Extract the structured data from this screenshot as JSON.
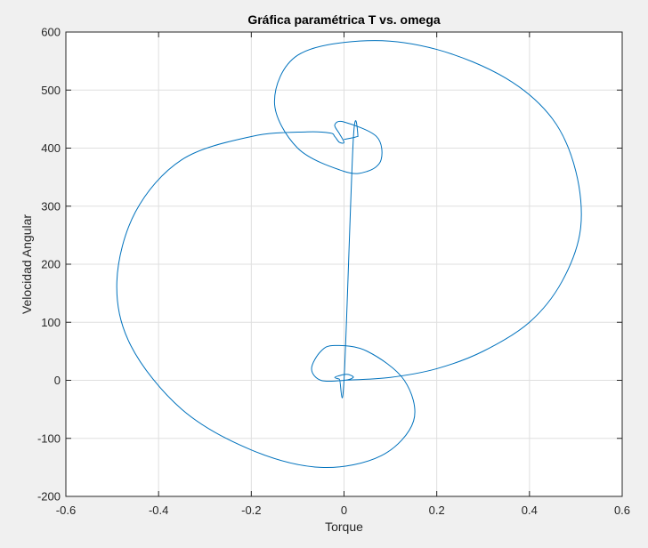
{
  "chart_data": {
    "type": "line",
    "title": "Gráfica paramétrica T vs. omega",
    "xlabel": "Torque",
    "ylabel": "Velocidad Angular",
    "xlim": [
      -0.6,
      0.6
    ],
    "ylim": [
      -200,
      600
    ],
    "xticks": [
      -0.6,
      -0.4,
      -0.2,
      0,
      0.2,
      0.4,
      0.6
    ],
    "yticks": [
      -200,
      -100,
      0,
      100,
      200,
      300,
      400,
      500,
      600
    ],
    "xtick_labels": [
      "-0.6",
      "-0.4",
      "-0.2",
      "0",
      "0.2",
      "0.4",
      "0.6"
    ],
    "ytick_labels": [
      "-200",
      "-100",
      "0",
      "100",
      "200",
      "300",
      "400",
      "500",
      "600"
    ],
    "grid": true,
    "colors": {
      "line": "#0072bd",
      "axes_bg": "#ffffff",
      "figure_bg": "#f0f0f0",
      "grid": "#dfdfdf",
      "axis": "#262626"
    },
    "series": [
      {
        "x": [
          0.0,
          0.1,
          0.2,
          0.3,
          0.4,
          0.47,
          0.51,
          0.5,
          0.45,
          0.35,
          0.2,
          0.05,
          -0.1,
          -0.15,
          -0.1,
          0.0,
          0.05,
          0.08,
          0.07,
          0.0,
          -0.02,
          -0.01,
          0.0,
          -0.01,
          -0.02,
          -0.03,
          -0.08,
          -0.2,
          -0.35,
          -0.45,
          -0.49,
          -0.46,
          -0.35,
          -0.2,
          -0.05,
          0.08,
          0.15,
          0.13,
          0.05,
          -0.02,
          -0.05,
          -0.07,
          -0.05,
          0.0,
          0.02,
          0.01,
          0.0,
          -0.01,
          -0.02,
          -0.01,
          0.0,
          0.02,
          0.03,
          0.02,
          0.0
        ],
        "y": [
          0,
          5,
          20,
          50,
          100,
          170,
          260,
          360,
          450,
          520,
          570,
          585,
          560,
          480,
          400,
          360,
          360,
          380,
          420,
          445,
          440,
          425,
          410,
          410,
          420,
          426,
          428,
          420,
          380,
          290,
          170,
          60,
          -50,
          -120,
          -150,
          -130,
          -70,
          0,
          50,
          60,
          50,
          20,
          0,
          0,
          5,
          10,
          10,
          8,
          5,
          2,
          0,
          415,
          420,
          418,
          415
        ]
      }
    ]
  }
}
